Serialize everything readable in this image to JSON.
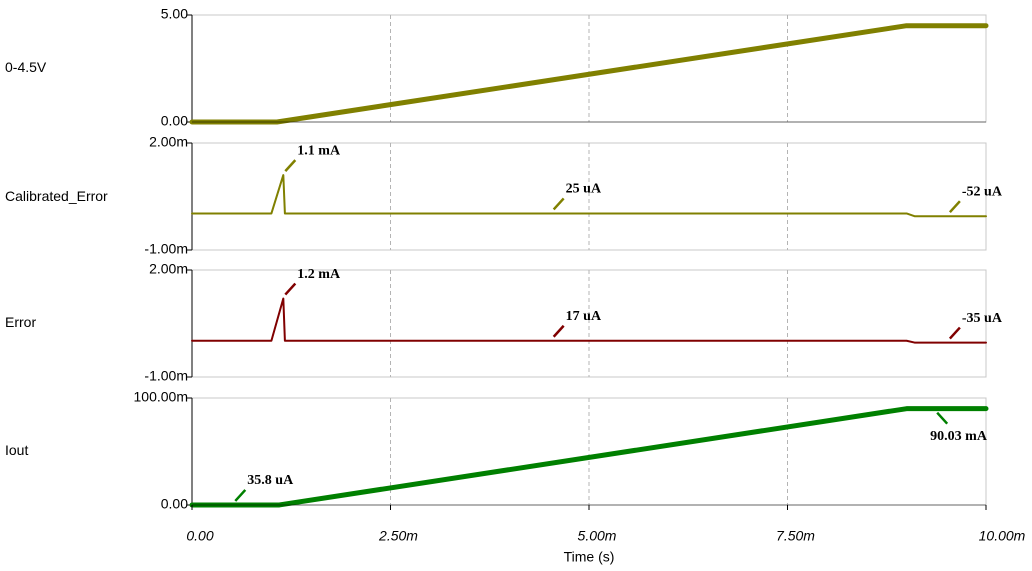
{
  "chart_data": [
    {
      "type": "line",
      "x": [
        0,
        0.00107,
        0.009,
        0.01
      ],
      "series": [
        {
          "name": "0-4.5V",
          "color": "#808000",
          "values": [
            0,
            0,
            4.5,
            4.5
          ]
        }
      ],
      "ylim": [
        0,
        5
      ],
      "yticks": [
        {
          "value": 0,
          "label": "0.00"
        },
        {
          "value": 5,
          "label": "5.00"
        }
      ],
      "annotations": []
    },
    {
      "type": "line",
      "x": [
        0,
        0.001,
        0.00115,
        0.00117,
        0.009,
        0.0091,
        0.0092,
        0.01
      ],
      "series": [
        {
          "name": "Calibrated_Error",
          "color": "#808000",
          "values": [
            2.5e-05,
            2.5e-05,
            0.0011,
            2.5e-05,
            2.5e-05,
            -5.2e-05,
            -5.2e-05,
            -5.2e-05
          ]
        }
      ],
      "ylim": [
        -0.001,
        0.002
      ],
      "yticks": [
        {
          "value": -0.001,
          "label": "-1.00m"
        },
        {
          "value": 0.002,
          "label": "2.00m"
        }
      ],
      "annotations": [
        {
          "text": "1.1 mA",
          "x": 0.00115,
          "y": 0.0011
        },
        {
          "text": "25 uA",
          "x": 0.00453,
          "y": 2.5e-05
        },
        {
          "text": "-52 uA",
          "x": 0.00952,
          "y": -5.2e-05
        }
      ]
    },
    {
      "type": "line",
      "x": [
        0,
        0.001,
        0.00115,
        0.00117,
        0.009,
        0.0091,
        0.0092,
        0.01
      ],
      "series": [
        {
          "name": "Error",
          "color": "#800000",
          "values": [
            1.7e-05,
            1.7e-05,
            0.0012,
            1.7e-05,
            1.7e-05,
            -3.5e-05,
            -3.5e-05,
            -3.5e-05
          ]
        }
      ],
      "ylim": [
        -0.001,
        0.002
      ],
      "yticks": [
        {
          "value": -0.001,
          "label": "-1.00m"
        },
        {
          "value": 0.002,
          "label": "2.00m"
        }
      ],
      "annotations": [
        {
          "text": "1.2 mA",
          "x": 0.00115,
          "y": 0.0012
        },
        {
          "text": "17 uA",
          "x": 0.00453,
          "y": 1.7e-05
        },
        {
          "text": "-35 uA",
          "x": 0.00952,
          "y": -3.5e-05
        }
      ]
    },
    {
      "type": "line",
      "x": [
        0,
        0.0011,
        0.009,
        0.01
      ],
      "series": [
        {
          "name": "Iout",
          "color": "#008000",
          "values": [
            3.58e-05,
            3.58e-05,
            0.09003,
            0.09003
          ]
        }
      ],
      "ylim": [
        0,
        0.1
      ],
      "yticks": [
        {
          "value": 0,
          "label": "0.00"
        },
        {
          "value": 0.1,
          "label": "100.00m"
        }
      ],
      "xlim": [
        0,
        0.01
      ],
      "xticks": [
        {
          "value": 0,
          "label": "0.00"
        },
        {
          "value": 0.0025,
          "label": "2.50m"
        },
        {
          "value": 0.005,
          "label": "5.00m"
        },
        {
          "value": 0.0075,
          "label": "7.50m"
        },
        {
          "value": 0.01,
          "label": "10.00m"
        }
      ],
      "x_label": "Time (s)",
      "annotations": [
        {
          "text": "35.8 uA",
          "x": 0.00052,
          "y": 3.58e-05
        },
        {
          "text": "90.03 mA",
          "x": 0.00936,
          "y": 0.09003
        }
      ]
    }
  ]
}
